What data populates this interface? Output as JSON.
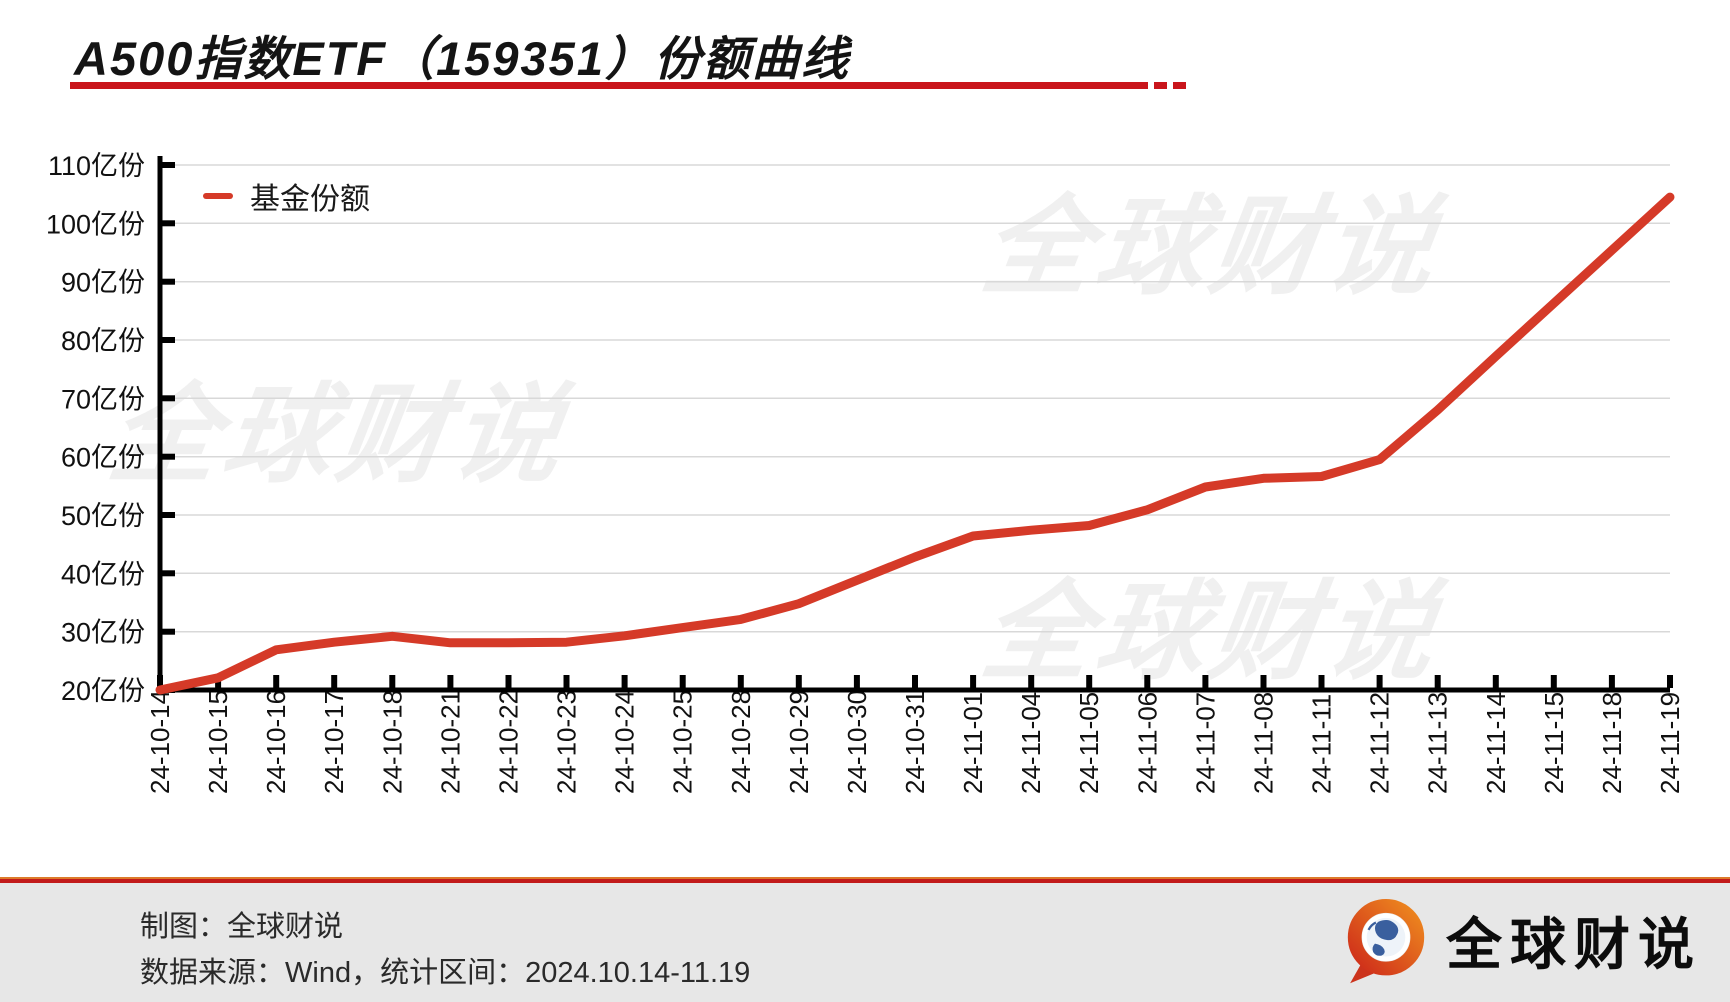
{
  "header": {
    "title": "A500指数ETF（159351）份额曲线"
  },
  "legend": {
    "label": "基金份额"
  },
  "watermark": {
    "text": "全球财说"
  },
  "chart_data": {
    "type": "line",
    "title": "A500指数ETF（159351）份额曲线",
    "unit": "亿份",
    "categories": [
      "24-10-14",
      "24-10-15",
      "24-10-16",
      "24-10-17",
      "24-10-18",
      "24-10-21",
      "24-10-22",
      "24-10-23",
      "24-10-24",
      "24-10-25",
      "24-10-28",
      "24-10-29",
      "24-10-30",
      "24-10-31",
      "24-11-01",
      "24-11-04",
      "24-11-05",
      "24-11-06",
      "24-11-07",
      "24-11-08",
      "24-11-11",
      "24-11-12",
      "24-11-13",
      "24-11-14",
      "24-11-15",
      "24-11-18",
      "24-11-19"
    ],
    "series": [
      {
        "name": "基金份额",
        "values": [
          20.0,
          22.1,
          26.9,
          28.2,
          29.2,
          28.1,
          28.1,
          28.2,
          29.3,
          30.7,
          32.1,
          34.8,
          38.8,
          42.8,
          46.4,
          47.4,
          48.2,
          50.9,
          54.8,
          56.3,
          56.6,
          59.5,
          68.0,
          77.2,
          86.3,
          95.4,
          104.5
        ]
      }
    ],
    "y_ticks": [
      20,
      30,
      40,
      50,
      60,
      70,
      80,
      90,
      100,
      110
    ],
    "y_tick_suffix": "亿份",
    "ylim": [
      20,
      110
    ],
    "grid": true,
    "legend_position": "top-left",
    "line_color": "#d53a28"
  },
  "footer": {
    "credit": "制图：全球财说",
    "source": "数据来源：Wind，统计区间：2024.10.14-11.19",
    "brand": "全球财说"
  },
  "colors": {
    "line": "#d53a28",
    "title_underline": "#c9151b",
    "grid": "#d8d8d8",
    "axis": "#000000",
    "footer_bg": "#e7e7e7",
    "footer_sep_red": "#c21b1b",
    "footer_sep_orange": "#dd7b2b",
    "watermark": "#f0f0f0",
    "logo_orange": "#ee8a1f",
    "logo_red": "#ce2c1a",
    "globe_blue": "#3a5f9e"
  }
}
